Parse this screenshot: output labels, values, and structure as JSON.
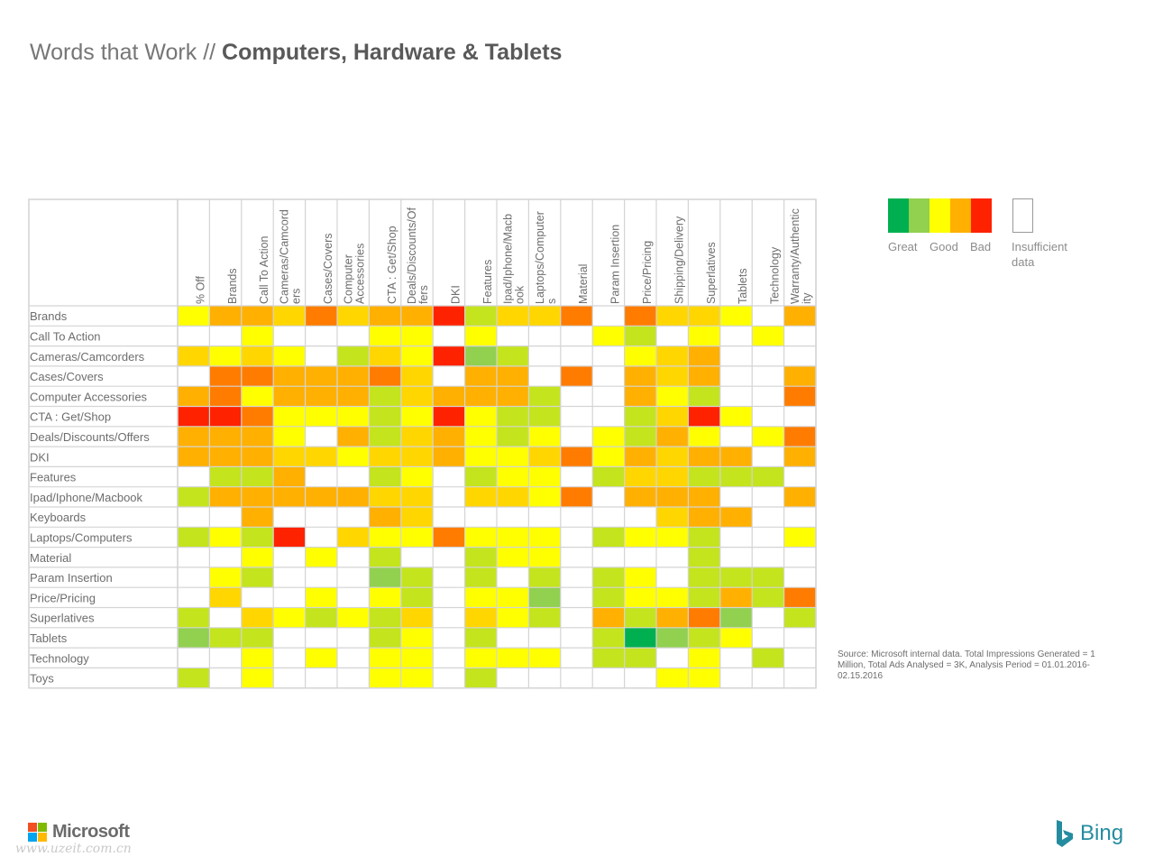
{
  "header": {
    "title_light": "Words that Work // ",
    "title_bold": "Computers, Hardware & Tablets"
  },
  "chart_data": {
    "type": "heatmap",
    "rows": [
      "Brands",
      "Call To Action",
      "Cameras/Camcorders",
      "Cases/Covers",
      "Computer Accessories",
      "CTA : Get/Shop",
      "Deals/Discounts/Offers",
      "DKI",
      "Features",
      "Ipad/Iphone/Macbook",
      "Keyboards",
      "Laptops/Computers",
      "Material",
      "Param Insertion",
      "Price/Pricing",
      "Superlatives",
      "Tablets",
      "Technology",
      "Toys"
    ],
    "columns": [
      [
        "% Off"
      ],
      [
        "Brands"
      ],
      [
        "Call To Action"
      ],
      [
        "Cameras/Camcord",
        "ers"
      ],
      [
        "Cases/Covers"
      ],
      [
        "Computer",
        "Accessories"
      ],
      [
        "CTA : Get/Shop"
      ],
      [
        "Deals/Discounts/Of",
        "fers"
      ],
      [
        "DKI"
      ],
      [
        "Features"
      ],
      [
        "Ipad/Iphone/Macb",
        "ook"
      ],
      [
        "Laptops/Computer",
        "s"
      ],
      [
        "Material"
      ],
      [
        "Param Insertion"
      ],
      [
        "Price/Pricing"
      ],
      [
        "Shipping/Delivery"
      ],
      [
        "Superlatives"
      ],
      [
        "Tablets"
      ],
      [
        "Technology"
      ],
      [
        "Warranty/Authentic",
        "ity"
      ]
    ],
    "scale_note": "values 1-8: 1=Great (green) ... 8=Bad (red); 0 = Insufficient data",
    "color_scale": [
      "#ffffff",
      "#00b050",
      "#92d050",
      "#c4e41e",
      "#ffff00",
      "#ffd600",
      "#ffb000",
      "#ff7c00",
      "#ff2200"
    ],
    "values": [
      [
        4,
        6,
        6,
        5,
        7,
        5,
        6,
        6,
        8,
        3,
        5,
        5,
        7,
        0,
        7,
        5,
        5,
        4,
        0,
        6
      ],
      [
        0,
        0,
        4,
        0,
        0,
        0,
        4,
        4,
        0,
        4,
        0,
        0,
        0,
        4,
        3,
        0,
        4,
        0,
        4,
        0
      ],
      [
        5,
        4,
        5,
        4,
        0,
        3,
        5,
        4,
        8,
        2,
        3,
        0,
        0,
        0,
        4,
        5,
        6,
        0,
        0,
        0
      ],
      [
        0,
        7,
        7,
        6,
        6,
        6,
        7,
        5,
        0,
        6,
        6,
        0,
        7,
        0,
        6,
        5,
        6,
        0,
        0,
        6
      ],
      [
        6,
        7,
        4,
        6,
        6,
        6,
        3,
        5,
        6,
        6,
        6,
        3,
        0,
        0,
        6,
        4,
        3,
        0,
        0,
        7
      ],
      [
        8,
        8,
        7,
        4,
        4,
        4,
        3,
        4,
        8,
        4,
        3,
        3,
        0,
        0,
        3,
        5,
        8,
        4,
        0,
        0
      ],
      [
        6,
        6,
        6,
        4,
        0,
        6,
        3,
        5,
        6,
        4,
        3,
        4,
        0,
        4,
        3,
        6,
        4,
        0,
        4,
        7
      ],
      [
        6,
        6,
        6,
        5,
        5,
        4,
        5,
        5,
        6,
        4,
        4,
        5,
        7,
        4,
        6,
        5,
        6,
        6,
        0,
        6
      ],
      [
        0,
        3,
        3,
        6,
        0,
        0,
        3,
        4,
        0,
        3,
        4,
        4,
        0,
        3,
        5,
        5,
        3,
        3,
        3,
        0
      ],
      [
        3,
        6,
        6,
        6,
        6,
        6,
        5,
        5,
        0,
        5,
        5,
        4,
        7,
        0,
        6,
        6,
        6,
        0,
        0,
        6
      ],
      [
        0,
        0,
        6,
        0,
        0,
        0,
        6,
        5,
        0,
        0,
        0,
        0,
        0,
        0,
        0,
        5,
        6,
        6,
        0,
        0
      ],
      [
        3,
        4,
        3,
        8,
        0,
        5,
        4,
        4,
        7,
        4,
        4,
        4,
        0,
        3,
        4,
        4,
        3,
        0,
        0,
        4
      ],
      [
        0,
        0,
        4,
        0,
        4,
        0,
        3,
        0,
        0,
        3,
        4,
        4,
        0,
        0,
        0,
        0,
        3,
        0,
        0,
        0
      ],
      [
        0,
        4,
        3,
        0,
        0,
        0,
        2,
        3,
        0,
        3,
        0,
        3,
        0,
        3,
        4,
        0,
        3,
        3,
        3,
        0
      ],
      [
        0,
        5,
        0,
        0,
        4,
        0,
        4,
        3,
        0,
        4,
        4,
        2,
        0,
        3,
        4,
        4,
        3,
        6,
        3,
        7
      ],
      [
        3,
        0,
        5,
        4,
        3,
        4,
        3,
        5,
        0,
        5,
        4,
        3,
        0,
        6,
        3,
        6,
        7,
        2,
        0,
        3
      ],
      [
        2,
        3,
        3,
        0,
        0,
        0,
        3,
        4,
        0,
        3,
        0,
        0,
        0,
        3,
        1,
        2,
        3,
        4,
        0,
        0
      ],
      [
        0,
        0,
        4,
        0,
        4,
        0,
        4,
        4,
        0,
        4,
        4,
        4,
        0,
        3,
        3,
        0,
        4,
        0,
        3,
        0
      ],
      [
        3,
        0,
        4,
        0,
        0,
        0,
        4,
        4,
        0,
        3,
        0,
        0,
        0,
        0,
        0,
        4,
        4,
        0,
        0,
        0
      ]
    ]
  },
  "legend": {
    "colors": [
      "#00b050",
      "#92d050",
      "#ffff00",
      "#ffb000",
      "#ff2200"
    ],
    "great": "Great",
    "good": "Good",
    "bad": "Bad",
    "insufficient_1": "Insufficient",
    "insufficient_2": "data"
  },
  "source": "Source: Microsoft internal data. Total Impressions Generated = 1 Million, Total Ads Analysed = 3K, Analysis Period = 01.01.2016- 02.15.2016",
  "footer": {
    "microsoft": "Microsoft",
    "watermark": "www.uzeit.com.cn",
    "bing": "Bing",
    "ms_colors": [
      "#f25022",
      "#7fba00",
      "#00a4ef",
      "#ffb900"
    ],
    "bing_color": "#258ca0"
  }
}
